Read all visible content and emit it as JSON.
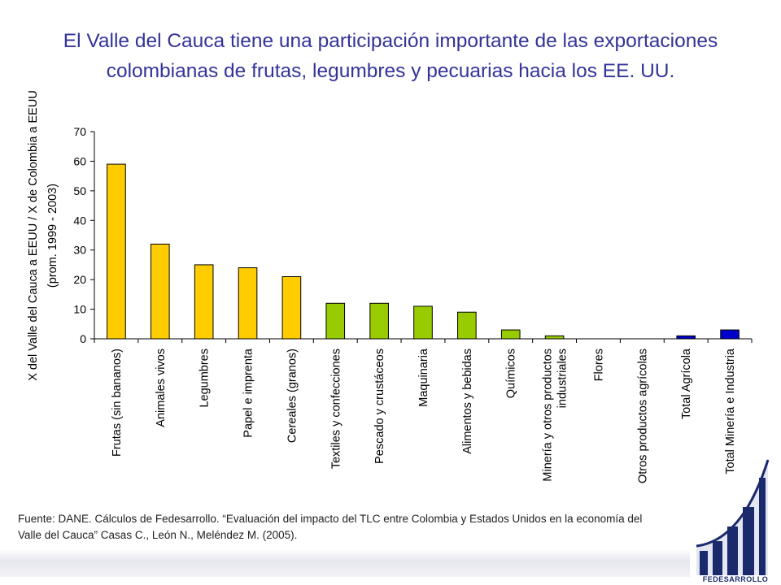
{
  "title": "El Valle del Cauca tiene una participación importante de las exportaciones colombianas de frutas, legumbres y pecuarias hacia los EE. UU.",
  "source": "Fuente: DANE. Cálculos de Fedesarrollo. “Evaluación del impacto del TLC entre Colombia y Estados Unidos en la economía del Valle del Cauca” Casas C., León N., Meléndez M. (2005).",
  "logo": {
    "text": "FEDESARROLLO",
    "icon": "fedesarrollo-logo-icon",
    "color": "#1a2a6c"
  },
  "colors": {
    "orange": "#FFCC00",
    "green": "#99CC00",
    "blue": "#0000CC",
    "title": "#333399"
  },
  "chart_data": {
    "type": "bar",
    "ylabel_lines": [
      "X del Valle del Cauca a EEUU / X de Colombia a EEUU",
      "(prom. 1999 - 2003)"
    ],
    "ylim": [
      0,
      70
    ],
    "yticks": [
      0,
      10,
      20,
      30,
      40,
      50,
      60,
      70
    ],
    "grid": false,
    "legend": "none",
    "categories": [
      "Frutas (sin bananos)",
      "Animales vivos",
      "Legumbres",
      "Papel e imprenta",
      "Cereales (granos)",
      "Textiles y confecciones",
      "Pescado y crustáceos",
      "Maquinaria",
      "Alimentos y bebidas",
      "Químicos",
      "Minería y otros productos industriales",
      "Flores",
      "Otros productos agrícolas",
      "Total Agrícola",
      "Total Minería e Industria"
    ],
    "values": [
      59,
      32,
      25,
      24,
      21,
      12,
      12,
      11,
      9,
      3,
      1,
      0,
      0,
      1,
      3
    ],
    "bar_colors": [
      "#FFCC00",
      "#FFCC00",
      "#FFCC00",
      "#FFCC00",
      "#FFCC00",
      "#99CC00",
      "#99CC00",
      "#99CC00",
      "#99CC00",
      "#99CC00",
      "#99CC00",
      "#99CC00",
      "#99CC00",
      "#0000CC",
      "#0000CC"
    ]
  }
}
